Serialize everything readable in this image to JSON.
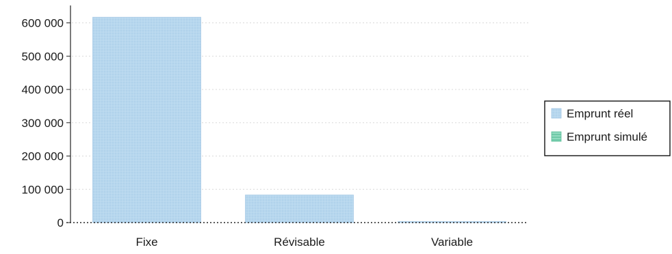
{
  "chart_data": {
    "type": "bar",
    "categories": [
      "Fixe",
      "Révisable",
      "Variable"
    ],
    "series": [
      {
        "name": "Emprunt réel",
        "values": [
          617000,
          83000,
          2000
        ],
        "color": "#b9d9ef"
      },
      {
        "name": "Emprunt simulé",
        "values": [
          0,
          0,
          0
        ],
        "color": "#7fd3b4"
      }
    ],
    "ylim": [
      0,
      640000
    ],
    "yticks": [
      {
        "value": 0,
        "label": "0"
      },
      {
        "value": 100000,
        "label": "100 000"
      },
      {
        "value": 200000,
        "label": "200 000"
      },
      {
        "value": 300000,
        "label": "300 000"
      },
      {
        "value": 400000,
        "label": "400 000"
      },
      {
        "value": 500000,
        "label": "500 000"
      },
      {
        "value": 600000,
        "label": "600 000"
      }
    ],
    "grid": true,
    "legend_position": "right"
  }
}
